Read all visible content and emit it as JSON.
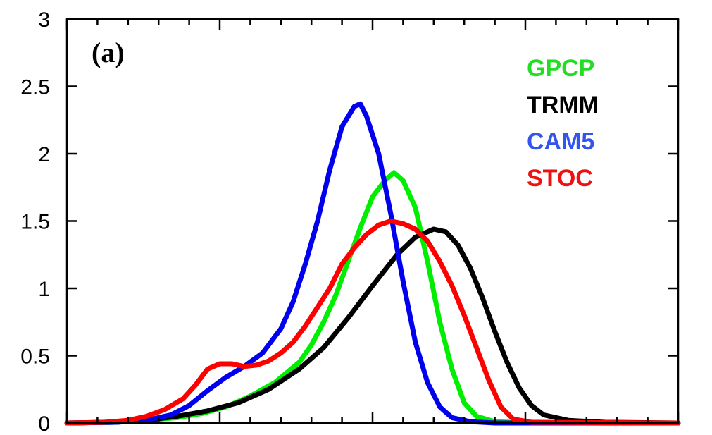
{
  "chart_data": {
    "type": "line",
    "panel_label": "(a)",
    "title": "",
    "xlabel": "",
    "ylabel": "",
    "ylim": [
      0,
      3
    ],
    "xlim": [
      0,
      1
    ],
    "x_tick_count": 21,
    "yticks": [
      0,
      0.5,
      1,
      1.5,
      2,
      2.5,
      3
    ],
    "ytick_labels": [
      "0",
      "0.5",
      "1",
      "1.5",
      "2",
      "2.5",
      "3"
    ],
    "grid": false,
    "legend_position": "top-right",
    "series": [
      {
        "name": "GPCP",
        "color": "#00ee00",
        "points": [
          [
            0,
            0
          ],
          [
            0.08,
            0.005
          ],
          [
            0.13,
            0.02
          ],
          [
            0.18,
            0.04
          ],
          [
            0.22,
            0.07
          ],
          [
            0.26,
            0.12
          ],
          [
            0.3,
            0.2
          ],
          [
            0.34,
            0.3
          ],
          [
            0.38,
            0.45
          ],
          [
            0.4,
            0.58
          ],
          [
            0.42,
            0.75
          ],
          [
            0.44,
            0.95
          ],
          [
            0.46,
            1.2
          ],
          [
            0.48,
            1.45
          ],
          [
            0.5,
            1.68
          ],
          [
            0.52,
            1.8
          ],
          [
            0.535,
            1.86
          ],
          [
            0.55,
            1.8
          ],
          [
            0.57,
            1.6
          ],
          [
            0.59,
            1.2
          ],
          [
            0.61,
            0.75
          ],
          [
            0.63,
            0.4
          ],
          [
            0.65,
            0.15
          ],
          [
            0.67,
            0.05
          ],
          [
            0.7,
            0.01
          ],
          [
            0.75,
            0
          ],
          [
            1.0,
            0
          ]
        ]
      },
      {
        "name": "TRMM",
        "color": "#000000",
        "points": [
          [
            0,
            0
          ],
          [
            0.08,
            0.005
          ],
          [
            0.13,
            0.02
          ],
          [
            0.18,
            0.05
          ],
          [
            0.23,
            0.09
          ],
          [
            0.28,
            0.15
          ],
          [
            0.33,
            0.25
          ],
          [
            0.38,
            0.4
          ],
          [
            0.42,
            0.56
          ],
          [
            0.46,
            0.78
          ],
          [
            0.5,
            1.02
          ],
          [
            0.54,
            1.25
          ],
          [
            0.57,
            1.38
          ],
          [
            0.6,
            1.44
          ],
          [
            0.62,
            1.42
          ],
          [
            0.64,
            1.32
          ],
          [
            0.66,
            1.15
          ],
          [
            0.68,
            0.93
          ],
          [
            0.7,
            0.68
          ],
          [
            0.72,
            0.45
          ],
          [
            0.74,
            0.26
          ],
          [
            0.76,
            0.13
          ],
          [
            0.78,
            0.06
          ],
          [
            0.82,
            0.02
          ],
          [
            0.88,
            0.005
          ],
          [
            1.0,
            0
          ]
        ]
      },
      {
        "name": "CAM5",
        "color": "#0000ee",
        "points": [
          [
            0,
            0
          ],
          [
            0.08,
            0.005
          ],
          [
            0.13,
            0.02
          ],
          [
            0.17,
            0.06
          ],
          [
            0.2,
            0.13
          ],
          [
            0.23,
            0.24
          ],
          [
            0.26,
            0.34
          ],
          [
            0.29,
            0.42
          ],
          [
            0.32,
            0.52
          ],
          [
            0.35,
            0.7
          ],
          [
            0.37,
            0.9
          ],
          [
            0.39,
            1.18
          ],
          [
            0.41,
            1.5
          ],
          [
            0.43,
            1.88
          ],
          [
            0.45,
            2.2
          ],
          [
            0.47,
            2.35
          ],
          [
            0.48,
            2.37
          ],
          [
            0.49,
            2.28
          ],
          [
            0.51,
            2.0
          ],
          [
            0.53,
            1.55
          ],
          [
            0.55,
            1.05
          ],
          [
            0.57,
            0.6
          ],
          [
            0.59,
            0.3
          ],
          [
            0.61,
            0.12
          ],
          [
            0.63,
            0.04
          ],
          [
            0.66,
            0.01
          ],
          [
            0.7,
            0
          ],
          [
            1.0,
            0
          ]
        ]
      },
      {
        "name": "STOC",
        "color": "#ff0000",
        "points": [
          [
            0,
            0
          ],
          [
            0.06,
            0.005
          ],
          [
            0.1,
            0.02
          ],
          [
            0.13,
            0.05
          ],
          [
            0.16,
            0.1
          ],
          [
            0.19,
            0.18
          ],
          [
            0.21,
            0.28
          ],
          [
            0.23,
            0.4
          ],
          [
            0.25,
            0.44
          ],
          [
            0.27,
            0.44
          ],
          [
            0.29,
            0.42
          ],
          [
            0.31,
            0.43
          ],
          [
            0.33,
            0.46
          ],
          [
            0.35,
            0.52
          ],
          [
            0.37,
            0.6
          ],
          [
            0.39,
            0.72
          ],
          [
            0.41,
            0.86
          ],
          [
            0.43,
            1.0
          ],
          [
            0.45,
            1.18
          ],
          [
            0.47,
            1.3
          ],
          [
            0.49,
            1.4
          ],
          [
            0.51,
            1.47
          ],
          [
            0.53,
            1.5
          ],
          [
            0.55,
            1.48
          ],
          [
            0.57,
            1.44
          ],
          [
            0.59,
            1.35
          ],
          [
            0.61,
            1.2
          ],
          [
            0.63,
            1.02
          ],
          [
            0.65,
            0.8
          ],
          [
            0.67,
            0.56
          ],
          [
            0.69,
            0.32
          ],
          [
            0.71,
            0.12
          ],
          [
            0.73,
            0.03
          ],
          [
            0.76,
            0.005
          ],
          [
            1.0,
            0
          ]
        ]
      }
    ]
  }
}
